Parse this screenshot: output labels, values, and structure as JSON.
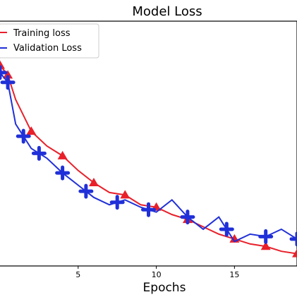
{
  "chart_data": {
    "type": "line",
    "title": "Model Loss",
    "xlabel": "Epochs",
    "ylabel": "",
    "xlim": [
      0,
      19
    ],
    "ylim": [
      0.0,
      1.0
    ],
    "x_ticks": [
      5,
      10,
      15
    ],
    "legend_position": "upper-left",
    "grid": false,
    "series": [
      {
        "name": "Training loss",
        "color": "#e8202a",
        "marker": "triangle",
        "x": [
          0,
          0.5,
          1,
          2,
          3,
          4,
          5,
          6,
          7,
          8,
          9,
          10,
          11,
          12,
          13,
          14,
          15,
          16,
          17,
          18,
          19
        ],
        "y": [
          0.82,
          0.78,
          0.68,
          0.55,
          0.49,
          0.45,
          0.39,
          0.34,
          0.3,
          0.29,
          0.25,
          0.24,
          0.21,
          0.19,
          0.16,
          0.13,
          0.11,
          0.09,
          0.08,
          0.06,
          0.05
        ],
        "marked": [
          0,
          0.5,
          2,
          4,
          6,
          8,
          10,
          12,
          15,
          17,
          19
        ]
      },
      {
        "name": "Validation Loss",
        "color": "#2030d8",
        "marker": "plus",
        "x": [
          0,
          0.5,
          1,
          2,
          3,
          4,
          5,
          6,
          7,
          8,
          9,
          10,
          11,
          12,
          13,
          14,
          15,
          16,
          17,
          18,
          19
        ],
        "y": [
          0.79,
          0.75,
          0.58,
          0.48,
          0.44,
          0.38,
          0.33,
          0.28,
          0.25,
          0.27,
          0.24,
          0.22,
          0.27,
          0.2,
          0.15,
          0.2,
          0.1,
          0.13,
          0.12,
          0.15,
          0.11
        ],
        "marked": [
          0,
          0.5,
          1.5,
          2.5,
          4,
          5.5,
          7.5,
          9.5,
          12,
          14.5,
          17,
          19
        ]
      }
    ]
  }
}
